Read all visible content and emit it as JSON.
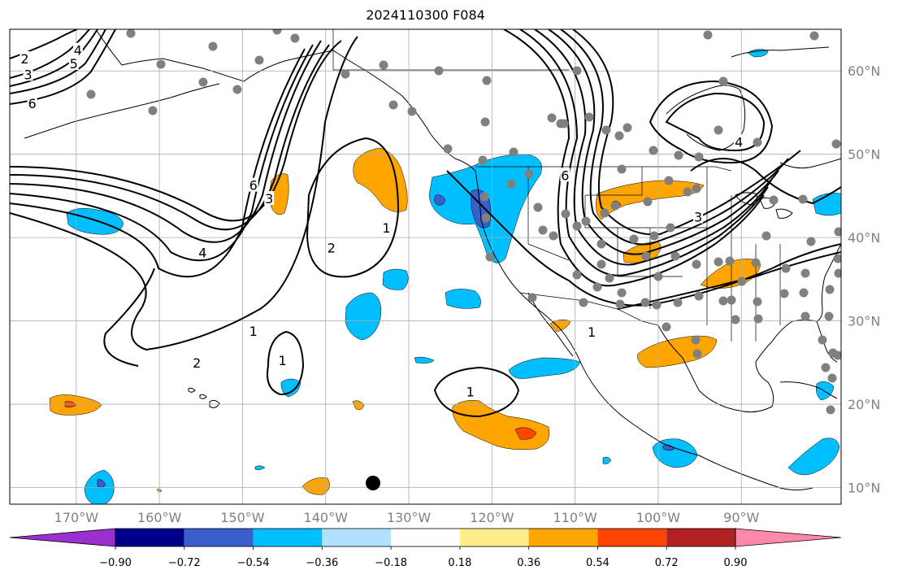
{
  "title": "2024110300 F084",
  "map": {
    "lon_labels": [
      "170°W",
      "160°W",
      "150°W",
      "140°W",
      "130°W",
      "120°W",
      "110°W",
      "100°W",
      "90°W"
    ],
    "lat_labels": [
      "60°N",
      "50°N",
      "40°N",
      "30°N",
      "20°N",
      "10°N"
    ],
    "lon_range": [
      -178,
      -78
    ],
    "lat_range": [
      8,
      65
    ],
    "grid": true
  },
  "colorbar": {
    "levels": [
      "−0.90",
      "−0.72",
      "−0.54",
      "−0.36",
      "−0.18",
      "0.18",
      "0.36",
      "0.54",
      "0.72",
      "0.90"
    ],
    "colors": [
      "#9b30d0",
      "#00008b",
      "#3a5fcd",
      "#00bfff",
      "#b0e2ff",
      "#ffffff",
      "#ffec8b",
      "#ffa500",
      "#ff4500",
      "#b22222",
      "#ff88aa"
    ]
  },
  "contour_labels": [
    {
      "text": "2",
      "lon": -176.2,
      "lat": 61.5
    },
    {
      "text": "3",
      "lon": -175.8,
      "lat": 59.6
    },
    {
      "text": "4",
      "lon": -169.8,
      "lat": 62.5
    },
    {
      "text": "5",
      "lon": -170.3,
      "lat": 60.9
    },
    {
      "text": "6",
      "lon": -175.3,
      "lat": 56.1
    },
    {
      "text": "6",
      "lon": -148.7,
      "lat": 46.3
    },
    {
      "text": "3",
      "lon": -146.8,
      "lat": 44.7
    },
    {
      "text": "4",
      "lon": -154.8,
      "lat": 38.2
    },
    {
      "text": "2",
      "lon": -139.3,
      "lat": 38.8
    },
    {
      "text": "1",
      "lon": -132.7,
      "lat": 41.2
    },
    {
      "text": "1",
      "lon": -148.7,
      "lat": 28.8
    },
    {
      "text": "2",
      "lon": -155.5,
      "lat": 25.0
    },
    {
      "text": "1",
      "lon": -145.2,
      "lat": 25.3
    },
    {
      "text": "1",
      "lon": -122.6,
      "lat": 21.5
    },
    {
      "text": "6",
      "lon": -111.2,
      "lat": 47.5
    },
    {
      "text": "3",
      "lon": -95.2,
      "lat": 42.5
    },
    {
      "text": "4",
      "lon": -90.3,
      "lat": 51.5
    },
    {
      "text": "1",
      "lon": -108.0,
      "lat": 28.7
    }
  ],
  "icons": {
    "station": "station-dot-icon",
    "marker": "storm-marker-icon"
  }
}
